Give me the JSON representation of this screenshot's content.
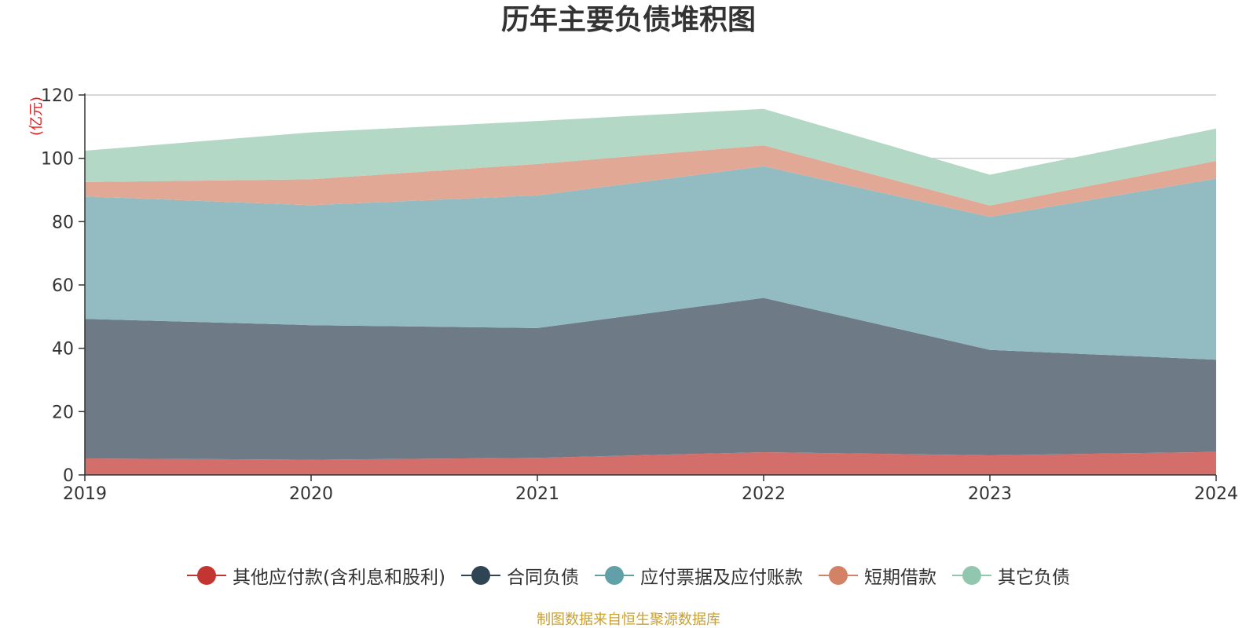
{
  "chart_data": {
    "type": "area",
    "stacked": true,
    "title": "历年主要负债堆积图",
    "ylabel": "(亿元)",
    "ylim": [
      0,
      120
    ],
    "yticks": [
      0,
      20,
      40,
      60,
      80,
      100,
      120
    ],
    "categories": [
      "2019",
      "2020",
      "2021",
      "2022",
      "2023",
      "2024"
    ],
    "grid": true,
    "legend_position": "bottom",
    "series": [
      {
        "name": "其他应付款(含利息和股利)",
        "values": [
          5.2,
          4.8,
          5.4,
          7.2,
          6.2,
          7.3
        ],
        "color": "#c23531",
        "fill": "#d46e6a"
      },
      {
        "name": "合同负债",
        "values": [
          44.1,
          42.5,
          41.0,
          48.7,
          33.3,
          29.1
        ],
        "color": "#2f4554",
        "fill": "#6e7b87"
      },
      {
        "name": "应付票据及应付账款",
        "values": [
          38.7,
          37.9,
          41.9,
          41.6,
          42.0,
          57.2
        ],
        "color": "#61a0a8",
        "fill": "#92bcc2"
      },
      {
        "name": "短期借款",
        "values": [
          4.5,
          8.2,
          9.9,
          6.6,
          3.6,
          5.6
        ],
        "color": "#d48265",
        "fill": "#e2a896"
      },
      {
        "name": "其它负债",
        "values": [
          9.9,
          14.8,
          13.6,
          11.5,
          9.7,
          10.2
        ],
        "color": "#91c7ae",
        "fill": "#b3d9c6"
      }
    ]
  },
  "source_text": "制图数据来自恒生聚源数据库"
}
